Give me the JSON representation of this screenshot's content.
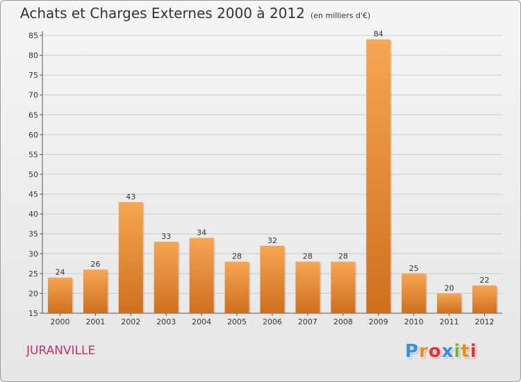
{
  "header": {
    "title": "Achats et Charges Externes 2000 à 2012",
    "unit": "(en milliers d'€)"
  },
  "location": "JURANVILLE",
  "logo": {
    "text": "Proxiti",
    "letters": [
      "P",
      "r",
      "o",
      "x",
      "i",
      "t",
      "i"
    ],
    "colors": [
      "#3a8fd9",
      "#f08a1c",
      "#e8312b",
      "#3a8fd9",
      "#7ab829",
      "#f08a1c",
      "#e8312b"
    ]
  },
  "chart_data": {
    "type": "bar",
    "title": "Achats et Charges Externes 2000 à 2012",
    "subtitle": "(en milliers d'€)",
    "xlabel": "",
    "ylabel": "",
    "categories": [
      "2000",
      "2001",
      "2002",
      "2003",
      "2004",
      "2005",
      "2006",
      "2007",
      "2008",
      "2009",
      "2010",
      "2011",
      "2012"
    ],
    "values": [
      24,
      26,
      43,
      33,
      34,
      28,
      32,
      28,
      28,
      84,
      25,
      20,
      22
    ],
    "ylim": [
      15,
      85
    ],
    "yticks": [
      15,
      20,
      25,
      30,
      35,
      40,
      45,
      50,
      55,
      60,
      65,
      70,
      75,
      80,
      85
    ],
    "grid": true,
    "legend": "none",
    "colors": {
      "bar_top": "#f6a652",
      "bar_bottom": "#cf6f1e",
      "grid": "#cccccc",
      "axis": "#555555"
    }
  }
}
